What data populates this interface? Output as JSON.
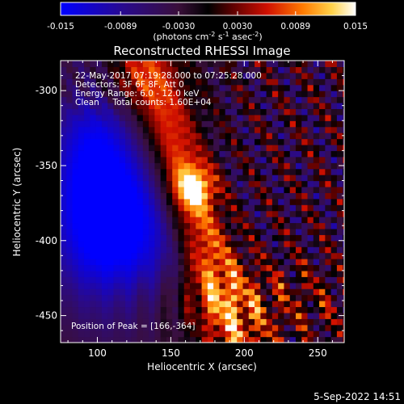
{
  "chart_data": {
    "type": "heatmap",
    "title": "Reconstructed RHESSI Image",
    "xlabel": "Heliocentric X (arcsec)",
    "ylabel": "Heliocentric Y (arcsec)",
    "xlim": [
      75,
      268
    ],
    "ylim": [
      -468,
      -280
    ],
    "x_ticks": [
      100,
      150,
      200,
      250
    ],
    "y_ticks": [
      -300,
      -350,
      -400,
      -450
    ],
    "colorbar": {
      "range": [
        -0.015,
        0.015
      ],
      "ticks": [
        "-0.015",
        "-0.0089",
        "-0.0030",
        "0.0030",
        "0.0089",
        "0.015"
      ],
      "units_main": "(photons cm",
      "units_sup1": "-2",
      "units_mid": " s",
      "units_sup2": "-1",
      "units_end": " asec",
      "units_sup3": "-2",
      "units_close": ")"
    },
    "annotations": [
      "22-May-2017 07:19:28.000 to 07:25:28.000",
      "Detectors: 3F 6F 8F, Att 0",
      "Energy Range: 6.0 - 12.0 keV",
      "Clean     Total counts: 1.60E+04"
    ],
    "peak_label": "Position of Peak = [166,-364]",
    "peak": [
      166,
      -364
    ],
    "grid": false,
    "colors": {
      "background": "#000000",
      "text": "#ffffff"
    }
  },
  "footer_timestamp": "5-Sep-2022 14:51"
}
